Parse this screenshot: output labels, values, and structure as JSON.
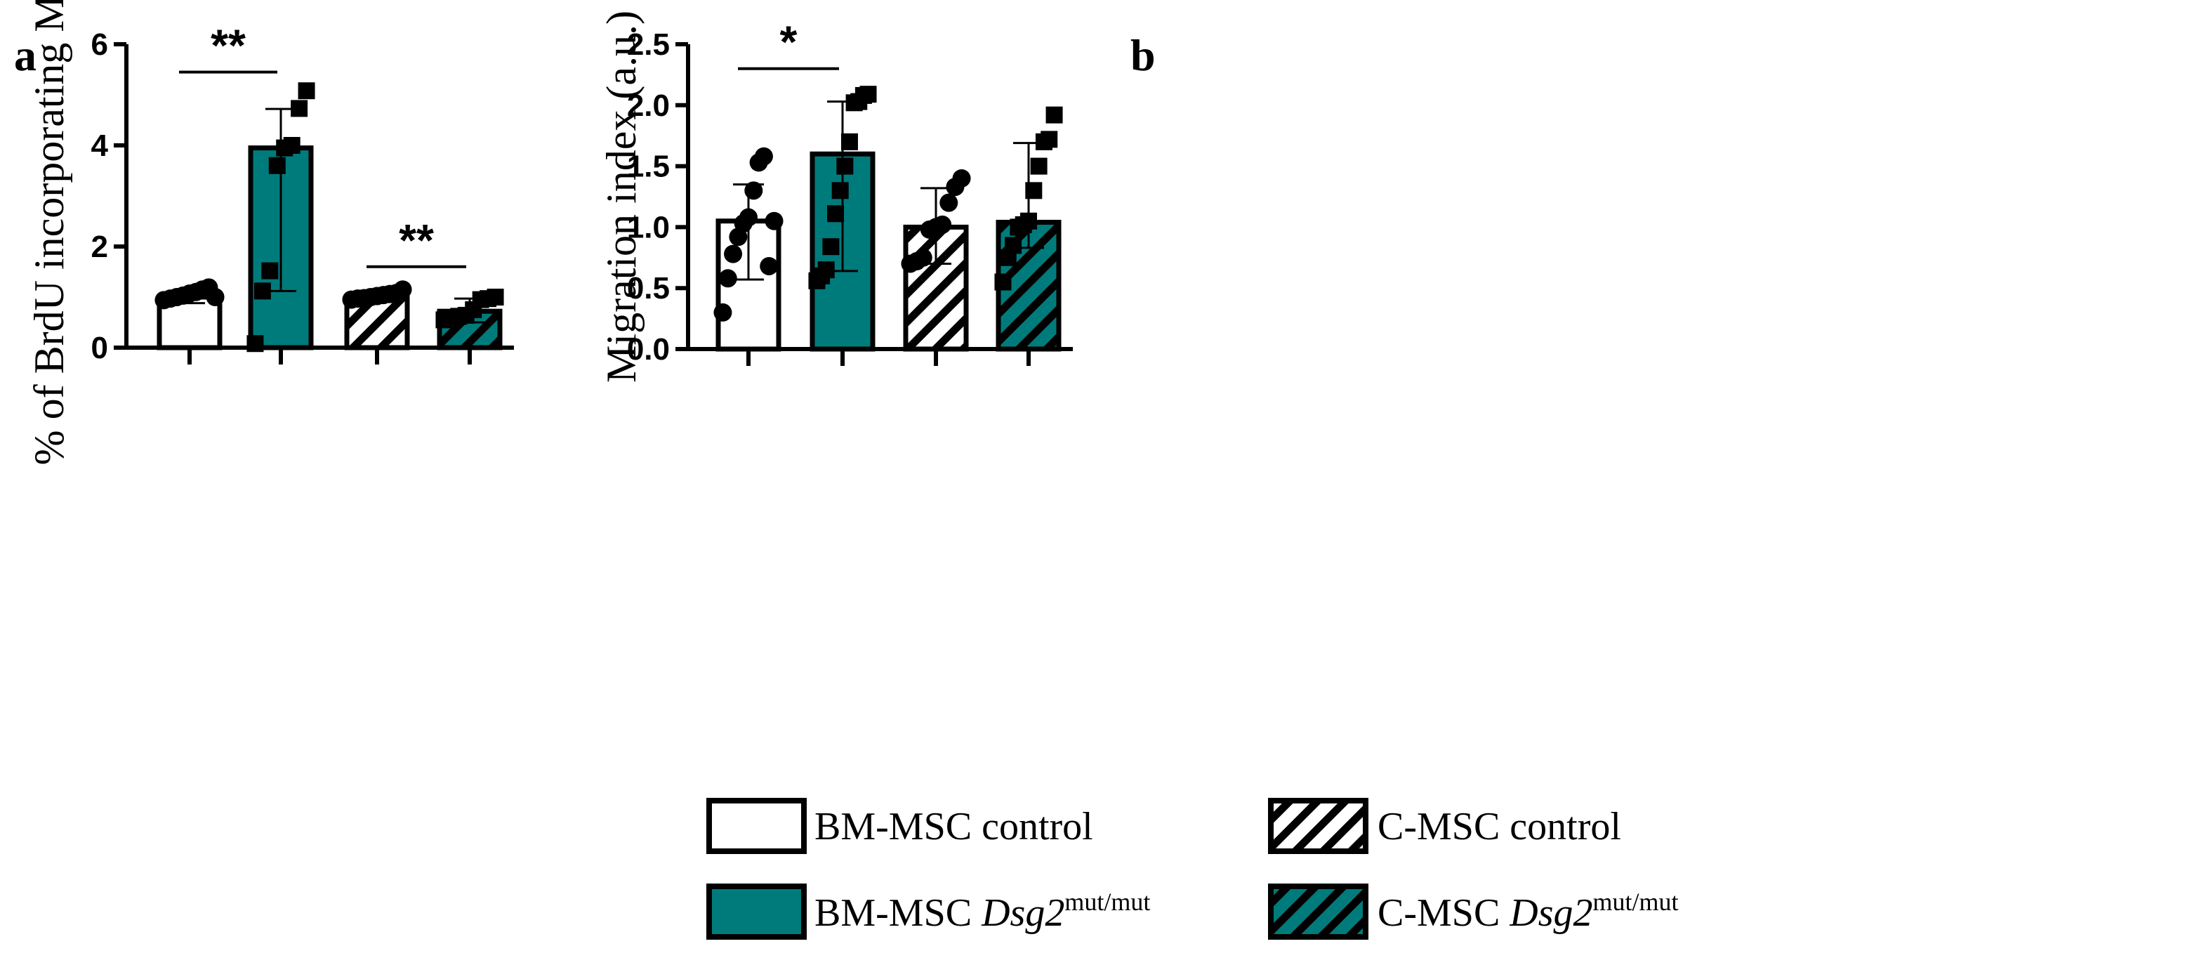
{
  "panels": {
    "a": {
      "label": "a"
    },
    "b": {
      "label": "b"
    }
  },
  "legend": {
    "items": [
      {
        "key": "bm_control",
        "label": "BM-MSC control",
        "fill": "white"
      },
      {
        "key": "bm_mut",
        "label": "BM-MSC ",
        "gene": "Dsg2",
        "superscript": "mut/mut",
        "fill": "teal"
      },
      {
        "key": "c_control",
        "label": "C-MSC control",
        "fill": "white-hatched"
      },
      {
        "key": "c_mut",
        "label": "C-MSC ",
        "gene": "Dsg2",
        "superscript": "mut/mut",
        "fill": "teal-hatched"
      }
    ]
  },
  "colors": {
    "teal": "#007b7c",
    "white": "#ffffff",
    "black": "#000000"
  },
  "chart_data": [
    {
      "type": "bar",
      "panel": "a",
      "title": "",
      "xlabel": "",
      "ylabel": "% of BrdU incorporating MSCs",
      "ylim": [
        0,
        6
      ],
      "yticks": [
        0,
        2,
        4,
        6
      ],
      "yticklabels": [
        "0",
        "2",
        "4",
        "6"
      ],
      "categories": [
        "BM-MSC control",
        "BM-MSC Dsg2mut/mut",
        "C-MSC control",
        "C-MSC Dsg2mut/mut"
      ],
      "fills": [
        "white",
        "teal",
        "white-hatched",
        "teal-hatched"
      ],
      "markers": [
        "circle",
        "square",
        "circle",
        "square"
      ],
      "values": [
        1.0,
        3.95,
        1.0,
        0.72
      ],
      "err_low": [
        0.88,
        1.12,
        0.93,
        0.5
      ],
      "err_high": [
        1.1,
        4.72,
        1.08,
        0.97
      ],
      "points": [
        [
          0.94,
          0.97,
          1.0,
          1.03,
          1.07,
          1.1,
          1.15,
          1.19,
          1.0
        ],
        [
          0.08,
          1.12,
          1.52,
          3.6,
          3.95,
          4.0,
          4.73,
          5.08
        ],
        [
          0.95,
          0.97,
          0.98,
          1.0,
          1.02,
          1.04,
          1.06,
          1.08,
          1.15
        ],
        [
          0.55,
          0.58,
          0.62,
          0.64,
          0.75,
          0.95,
          0.97,
          1.0
        ]
      ],
      "significance": [
        {
          "from": 0,
          "to": 1,
          "y": 5.45,
          "label": "**"
        },
        {
          "from": 2,
          "to": 3,
          "y": 1.6,
          "label": "**"
        }
      ]
    },
    {
      "type": "bar",
      "panel": "b",
      "title": "",
      "xlabel": "",
      "ylabel": "Migration index (a.u.)",
      "ylim": [
        0,
        2.5
      ],
      "yticks": [
        0,
        0.5,
        1,
        1.5,
        2,
        2.5
      ],
      "yticklabels": [
        "0.0",
        "0.5",
        "1.0",
        "1.5",
        "2.0",
        "2.5"
      ],
      "categories": [
        "BM-MSC control",
        "BM-MSC Dsg2mut/mut",
        "C-MSC control",
        "C-MSC Dsg2mut/mut"
      ],
      "fills": [
        "white",
        "teal",
        "white-hatched",
        "teal-hatched"
      ],
      "markers": [
        "circle",
        "square",
        "circle",
        "square"
      ],
      "values": [
        1.05,
        1.6,
        1.0,
        1.04
      ],
      "err_low": [
        0.57,
        0.64,
        0.7,
        0.83
      ],
      "err_high": [
        1.35,
        2.03,
        1.32,
        1.69
      ],
      "points": [
        [
          0.3,
          0.58,
          0.78,
          0.92,
          1.03,
          1.08,
          1.3,
          1.53,
          1.58,
          0.68,
          1.05
        ],
        [
          0.56,
          0.6,
          0.65,
          0.84,
          1.11,
          1.3,
          1.5,
          1.7,
          2.02,
          2.03,
          2.08,
          2.09
        ],
        [
          0.7,
          0.72,
          0.75,
          0.98,
          1.0,
          1.02,
          1.2,
          1.33,
          1.4
        ],
        [
          0.55,
          0.75,
          0.85,
          1.0,
          1.02,
          1.05,
          1.3,
          1.5,
          1.7,
          1.72,
          1.92
        ]
      ],
      "significance": [
        {
          "from": 0,
          "to": 1,
          "y": 2.3,
          "label": "*"
        }
      ]
    }
  ]
}
